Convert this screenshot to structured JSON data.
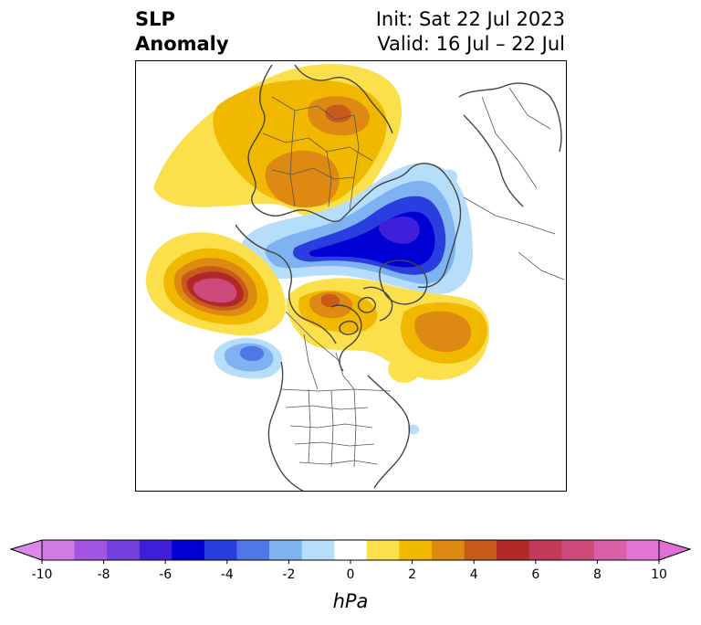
{
  "header": {
    "title_line1": "SLP",
    "title_line2": "Anomaly",
    "init_label": "Init: Sat 22 Jul 2023",
    "valid_label": "Valid: 16 Jul – 22 Jul"
  },
  "colorbar": {
    "unit": "hPa",
    "min": -10,
    "max": 10,
    "extend": "both",
    "ticks": [
      "-10",
      "-8",
      "-6",
      "-4",
      "-2",
      "0",
      "2",
      "4",
      "6",
      "8",
      "10"
    ],
    "colors": [
      "#d07ae3",
      "#a155e0",
      "#7240dc",
      "#3f1fd9",
      "#0000d4",
      "#2a3ee0",
      "#4f78e6",
      "#7fb2f0",
      "#b6defa",
      "#ffffff",
      "#fbe04c",
      "#f1b800",
      "#de8a12",
      "#c85a1c",
      "#b22828",
      "#c43b5a",
      "#cf4a7c",
      "#d95fa8",
      "#e474d6"
    ],
    "under_color": "#dc88ea",
    "over_color": "#e06fd8"
  },
  "map": {
    "projection": "polar stereographic, North Pole",
    "features": [
      "coastlines",
      "country borders",
      "US state borders",
      "Canadian provinces"
    ]
  }
}
